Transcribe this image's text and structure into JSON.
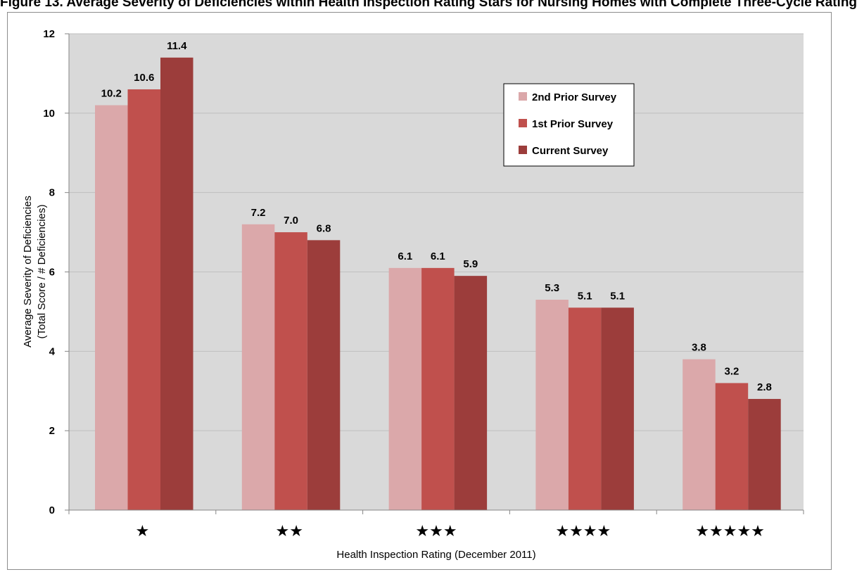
{
  "header": {
    "title": "Figure 13. Average Severity of Deficiencies within Health Inspection Rating Stars for Nursing Homes with Complete Three-Cycle Rating"
  },
  "colors": {
    "plot_bg": "#d9d9d9",
    "gridline": "#bfbfbf",
    "series": [
      "#dba8aa",
      "#c0504d",
      "#9c3d3b"
    ]
  },
  "chart_data": {
    "type": "bar",
    "categories": [
      "★",
      "★★",
      "★★★",
      "★★★★",
      "★★★★★"
    ],
    "series": [
      {
        "name": "2nd Prior Survey",
        "values": [
          10.2,
          7.2,
          6.1,
          5.3,
          3.8
        ],
        "labels": [
          "10.2",
          "7.2",
          "6.1",
          "5.3",
          "3.8"
        ]
      },
      {
        "name": "1st Prior Survey",
        "values": [
          10.6,
          7.0,
          6.1,
          5.1,
          3.2
        ],
        "labels": [
          "10.6",
          "7.0",
          "6.1",
          "5.1",
          "3.2"
        ]
      },
      {
        "name": "Current Survey",
        "values": [
          11.4,
          6.8,
          5.9,
          5.1,
          2.8
        ],
        "labels": [
          "11.4",
          "6.8",
          "5.9",
          "5.1",
          "2.8"
        ]
      }
    ],
    "xlabel": "Health Inspection Rating (December 2011)",
    "ylabel": [
      "Average Severity of Deficiencies",
      "(Total Score / # Deficiencies)"
    ],
    "ylim": [
      0,
      12
    ],
    "yticks": [
      "0",
      "2",
      "4",
      "6",
      "8",
      "10",
      "12"
    ],
    "grid": true,
    "legend_position": "top-right"
  }
}
